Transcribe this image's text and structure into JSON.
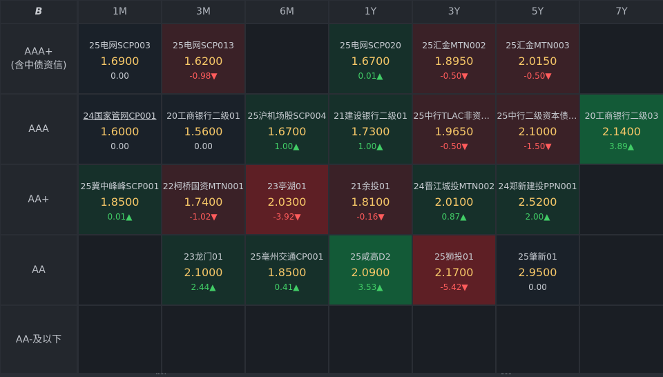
{
  "corner": {
    "icon": "bond-logo-icon",
    "label": "B"
  },
  "columns": [
    "1M",
    "3M",
    "6M",
    "1Y",
    "3Y",
    "5Y",
    "7Y"
  ],
  "rows": [
    {
      "label_lines": [
        "AAA+",
        "(含中债资信)"
      ],
      "cells": [
        {
          "name": "25电网SCP003",
          "rate": "1.6900",
          "change": "0.00",
          "dir": "flat",
          "tone": "n0"
        },
        {
          "name": "25电网SCP013",
          "rate": "1.6200",
          "change": "-0.98",
          "dir": "down",
          "tone": "r1"
        },
        null,
        {
          "name": "25电网SCP020",
          "rate": "1.6700",
          "change": "0.01",
          "dir": "up",
          "tone": "g1"
        },
        {
          "name": "25汇金MTN002",
          "rate": "1.8950",
          "change": "-0.50",
          "dir": "down",
          "tone": "r1"
        },
        {
          "name": "25汇金MTN003",
          "rate": "2.0150",
          "change": "-0.50",
          "dir": "down",
          "tone": "r1"
        },
        null
      ]
    },
    {
      "label_lines": [
        "AAA"
      ],
      "cells": [
        {
          "name": "24国家管网CP001",
          "rate": "1.6000",
          "change": "0.00",
          "dir": "flat",
          "tone": "n0",
          "underline": true
        },
        {
          "name": "20工商银行二级01",
          "rate": "1.5600",
          "change": "0.00",
          "dir": "flat",
          "tone": "n0"
        },
        {
          "name": "25沪机场股SCP004",
          "rate": "1.6700",
          "change": "1.00",
          "dir": "up",
          "tone": "g1"
        },
        {
          "name": "21建设银行二级01",
          "rate": "1.7300",
          "change": "1.00",
          "dir": "up",
          "tone": "g1"
        },
        {
          "name": "25中行TLAC非资本...",
          "rate": "1.9650",
          "change": "-0.50",
          "dir": "down",
          "tone": "r1"
        },
        {
          "name": "25中行二级资本债0...",
          "rate": "2.1000",
          "change": "-1.50",
          "dir": "down",
          "tone": "r1"
        },
        {
          "name": "20工商银行二级03",
          "rate": "2.1400",
          "change": "3.89",
          "dir": "up",
          "tone": "g2"
        }
      ]
    },
    {
      "label_lines": [
        "AA+"
      ],
      "cells": [
        {
          "name": "25冀中峰峰SCP001",
          "rate": "1.8500",
          "change": "0.01",
          "dir": "up",
          "tone": "g1"
        },
        {
          "name": "22柯桥国资MTN001",
          "rate": "1.7400",
          "change": "-1.02",
          "dir": "down",
          "tone": "r1"
        },
        {
          "name": "23亭湖01",
          "rate": "2.0300",
          "change": "-3.92",
          "dir": "down",
          "tone": "r2"
        },
        {
          "name": "21余投01",
          "rate": "1.8100",
          "change": "-0.16",
          "dir": "down",
          "tone": "r1"
        },
        {
          "name": "24晋江城投MTN002",
          "rate": "2.0100",
          "change": "0.87",
          "dir": "up",
          "tone": "g1"
        },
        {
          "name": "24郑新建投PPN001",
          "rate": "2.5200",
          "change": "2.00",
          "dir": "up",
          "tone": "g1"
        },
        null
      ]
    },
    {
      "label_lines": [
        "AA"
      ],
      "cells": [
        null,
        {
          "name": "23龙门01",
          "rate": "2.1000",
          "change": "2.44",
          "dir": "up",
          "tone": "g1"
        },
        {
          "name": "25亳州交通CP001",
          "rate": "1.8500",
          "change": "0.41",
          "dir": "up",
          "tone": "g1"
        },
        {
          "name": "25咸高D2",
          "rate": "2.0900",
          "change": "3.53",
          "dir": "up",
          "tone": "g2"
        },
        {
          "name": "25狮投01",
          "rate": "2.1700",
          "change": "-5.42",
          "dir": "down",
          "tone": "r2"
        },
        {
          "name": "25肇新01",
          "rate": "2.9500",
          "change": "0.00",
          "dir": "flat",
          "tone": "n0"
        },
        null
      ]
    },
    {
      "label_lines": [
        "AA-及以下"
      ],
      "cells": [
        null,
        null,
        null,
        null,
        null,
        null,
        null
      ]
    }
  ],
  "arrows": {
    "up": "▲",
    "down": "▼",
    "flat": ""
  },
  "colors": {
    "rate": "#f6c768",
    "up": "#41cc66",
    "down": "#ff5c5c",
    "flat": "#c7cbd1",
    "neutral_bg": "#1a2129",
    "green_light_bg": "#16302a",
    "green_strong_bg": "#135a37",
    "red_light_bg": "#3a2127",
    "red_strong_bg": "#5e1f25"
  }
}
